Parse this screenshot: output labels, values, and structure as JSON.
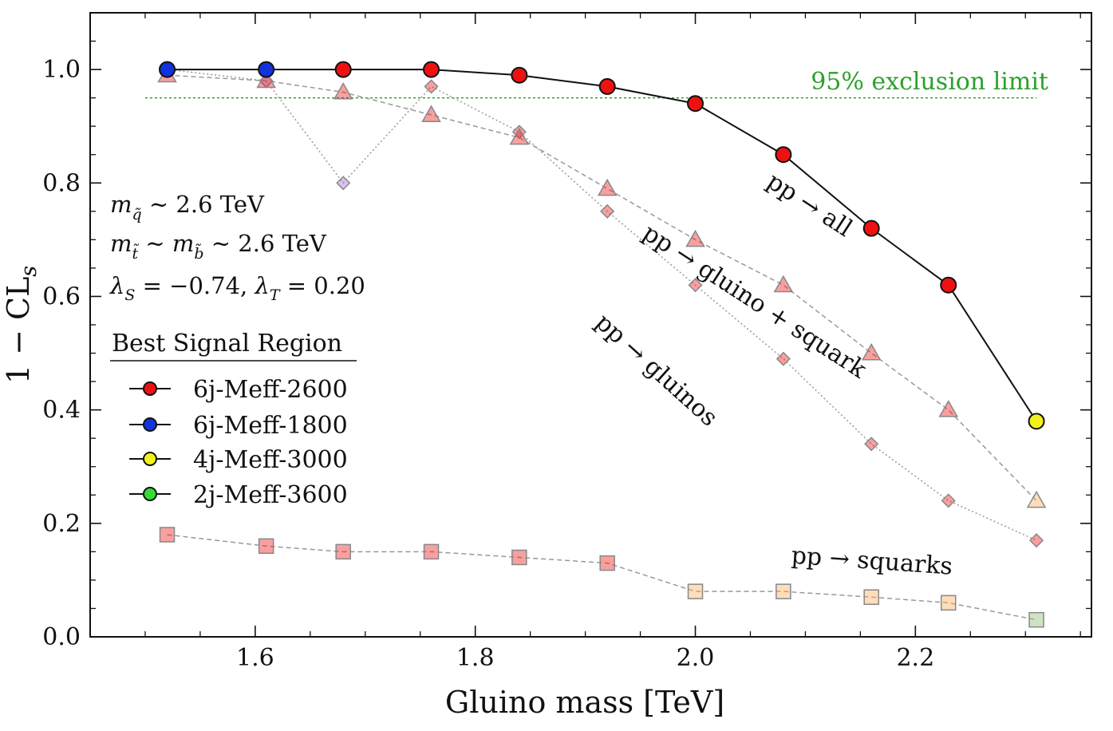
{
  "chart_data": {
    "type": "line",
    "xlabel": "Gluino mass [TeV]",
    "ylabel_main": "1 − CL",
    "ylabel_sub": "s",
    "xlim": [
      1.45,
      2.36
    ],
    "ylim": [
      0.0,
      1.1
    ],
    "xticks": [
      1.6,
      1.8,
      2.0,
      2.2
    ],
    "xtick_labels": [
      "1.6",
      "1.8",
      "2.0",
      "2.2"
    ],
    "yticks": [
      0.0,
      0.2,
      0.4,
      0.6,
      0.8,
      1.0
    ],
    "ytick_labels": [
      "0.0",
      "0.2",
      "0.4",
      "0.6",
      "0.8",
      "1.0"
    ],
    "x": [
      1.52,
      1.61,
      1.68,
      1.76,
      1.84,
      1.92,
      2.0,
      2.08,
      2.16,
      2.23,
      2.31
    ],
    "exclusion_limit": {
      "value": 0.95,
      "label": "95% exclusion limit",
      "color": "#2ca02c"
    },
    "region_colors": {
      "6j-Meff-2600": "#ee1111",
      "6j-Meff-1800": "#1133dd",
      "4j-Meff-3000": "#f2f21a",
      "2j-Meff-3600": "#33dd33",
      "purple": "#9966cc",
      "orange": "#ffaa55",
      "olive": "#88b866"
    },
    "series": [
      {
        "name": "pp → all",
        "marker": "circle",
        "style": "solid",
        "values": [
          1.0,
          1.0,
          1.0,
          1.0,
          0.99,
          0.97,
          0.94,
          0.85,
          0.72,
          0.62,
          0.38
        ],
        "regions": [
          "6j-Meff-1800",
          "6j-Meff-1800",
          "6j-Meff-2600",
          "6j-Meff-2600",
          "6j-Meff-2600",
          "6j-Meff-2600",
          "6j-Meff-2600",
          "6j-Meff-2600",
          "6j-Meff-2600",
          "6j-Meff-2600",
          "4j-Meff-3000"
        ]
      },
      {
        "name": "pp → gluino + squark",
        "marker": "triangle",
        "style": "dashed",
        "values": [
          0.99,
          0.98,
          0.96,
          0.92,
          0.88,
          0.79,
          0.7,
          0.62,
          0.5,
          0.4,
          0.24
        ],
        "regions": [
          "6j-Meff-2600",
          "6j-Meff-2600",
          "6j-Meff-2600",
          "6j-Meff-2600",
          "6j-Meff-2600",
          "6j-Meff-2600",
          "6j-Meff-2600",
          "6j-Meff-2600",
          "6j-Meff-2600",
          "6j-Meff-2600",
          "orange"
        ]
      },
      {
        "name": "pp → gluinos",
        "marker": "diamond",
        "style": "dotted",
        "values": [
          1.0,
          0.98,
          0.8,
          0.97,
          0.89,
          0.75,
          0.62,
          0.49,
          0.34,
          0.24,
          0.17
        ],
        "regions": [
          "6j-Meff-2600",
          "purple",
          "purple",
          "6j-Meff-2600",
          "6j-Meff-2600",
          "6j-Meff-2600",
          "6j-Meff-2600",
          "6j-Meff-2600",
          "6j-Meff-2600",
          "6j-Meff-2600",
          "6j-Meff-2600"
        ]
      },
      {
        "name": "pp → squarks",
        "marker": "square",
        "style": "dashed",
        "values": [
          0.18,
          0.16,
          0.15,
          0.15,
          0.14,
          0.13,
          0.08,
          0.08,
          0.07,
          0.06,
          0.03
        ],
        "regions": [
          "6j-Meff-2600",
          "6j-Meff-2600",
          "6j-Meff-2600",
          "6j-Meff-2600",
          "6j-Meff-2600",
          "6j-Meff-2600",
          "orange",
          "orange",
          "orange",
          "orange",
          "olive"
        ]
      }
    ],
    "curve_labels": {
      "all": {
        "main": "pp → all",
        "x": 2.1,
        "y": 0.75,
        "angle": 33
      },
      "gluino_squark": {
        "main": "pp → gluino + squark",
        "x": 2.05,
        "y": 0.58,
        "angle": 33
      },
      "gluinos": {
        "main": "pp → gluinos",
        "x": 1.96,
        "y": 0.46,
        "angle": 42
      },
      "squarks": {
        "main": "pp → squarks",
        "x": 2.16,
        "y": 0.12,
        "angle": 4
      }
    },
    "annotations": {
      "line1_var": "m",
      "line1_sub": "q̃",
      "line1_rest": " ∼ 2.6 TeV",
      "line2_var1": "m",
      "line2_sub1": "t̃",
      "line2_mid": " ∼ ",
      "line2_var2": "m",
      "line2_sub2": "b̃",
      "line2_rest": " ∼ 2.6 TeV",
      "line3_l1": "λ",
      "line3_s1": "S",
      "line3_eq1": " = −0.74, ",
      "line3_l2": "λ",
      "line3_s2": "T",
      "line3_eq2": " = 0.20"
    },
    "legend": {
      "title": "Best Signal Region",
      "entries": [
        "6j-Meff-2600",
        "6j-Meff-1800",
        "4j-Meff-3000",
        "2j-Meff-3600"
      ]
    }
  }
}
